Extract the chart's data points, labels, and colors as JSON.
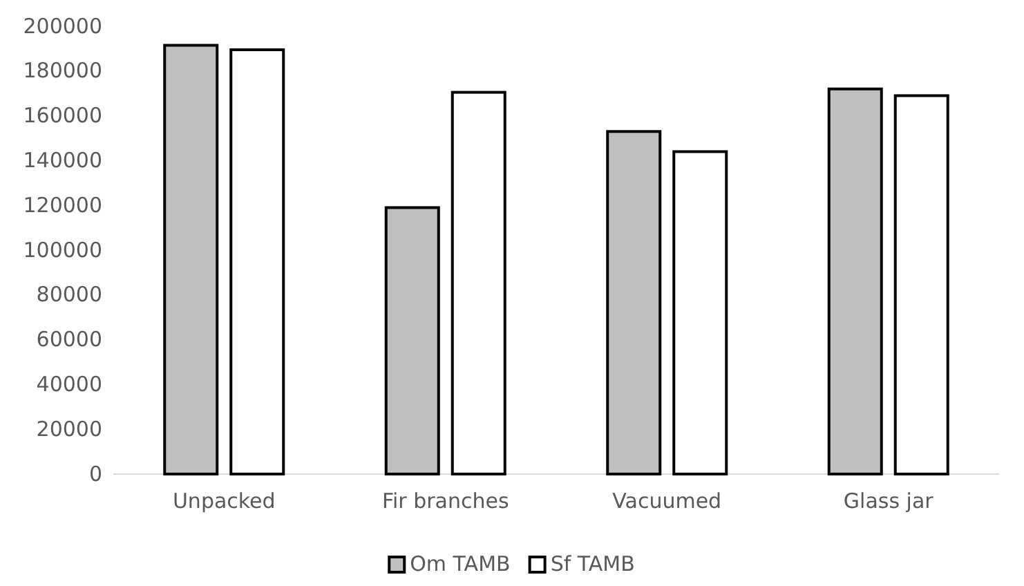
{
  "chart_data": {
    "type": "bar",
    "categories": [
      "Unpacked",
      "Fir branches",
      "Vacuumed",
      "Glass jar"
    ],
    "series": [
      {
        "name": "Om TAMB",
        "color": "#bfbfbf",
        "values": [
          191500,
          119000,
          153000,
          172000
        ]
      },
      {
        "name": "Sf TAMB",
        "color": "#ffffff",
        "values": [
          189500,
          170500,
          144000,
          169000
        ]
      }
    ],
    "ylim": [
      0,
      200000
    ],
    "yticks": [
      0,
      20000,
      40000,
      60000,
      80000,
      100000,
      120000,
      140000,
      160000,
      180000,
      200000
    ],
    "grid": false,
    "legend": "bottom"
  }
}
